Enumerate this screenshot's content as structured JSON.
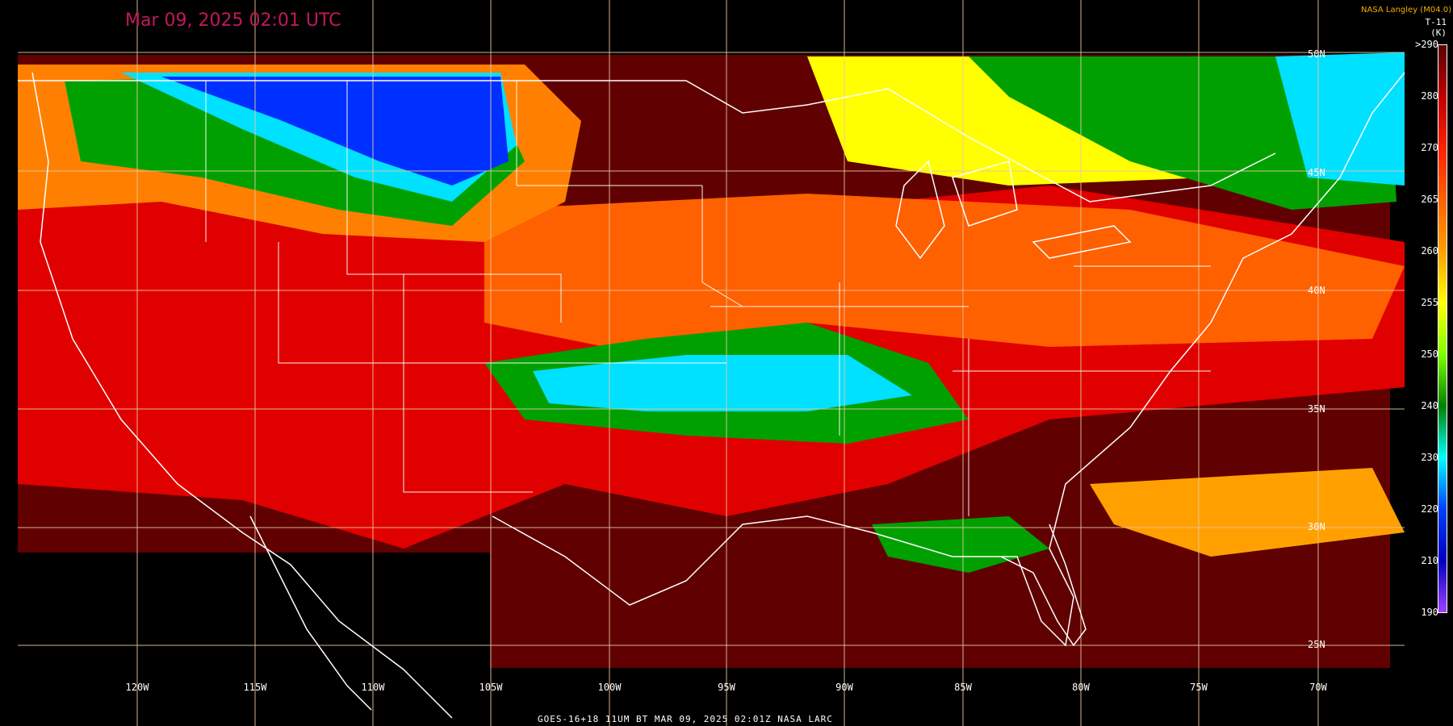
{
  "timestamp": "Mar 09, 2025 02:01 UTC",
  "credit": "NASA Langley (M04.0)",
  "band": {
    "product": "T-11",
    "unit": "(K)"
  },
  "footer": "GOES-16+18  11UM BT  MAR 09, 2025 02:01Z  NASA LARC",
  "colorbar": {
    "labels": [
      ">290",
      "280",
      "270",
      "265",
      "260",
      "255",
      "250",
      "240",
      "230",
      "220",
      "210",
      "190"
    ],
    "colors": [
      "#5a0000",
      "#c00000",
      "#ff2000",
      "#ff6000",
      "#ffa000",
      "#ffff00",
      "#80ff00",
      "#008000",
      "#00ffff",
      "#0040ff",
      "#0000c0",
      "#a040ff"
    ]
  },
  "longitude_labels": [
    "120W",
    "115W",
    "110W",
    "105W",
    "100W",
    "95W",
    "90W",
    "85W",
    "80W",
    "75W",
    "70W"
  ],
  "latitude_labels": [
    "50N",
    "45N",
    "40N",
    "35N",
    "30N",
    "25N"
  ],
  "palette": {
    "warm": "#600000",
    "red": "#e00000",
    "orange": "#ff6000",
    "yellow": "#ffff00",
    "green": "#00a000",
    "cyan": "#00e0ff",
    "blue": "#0030ff",
    "outline": "#ffffff",
    "grid": "#e8c8a0"
  }
}
